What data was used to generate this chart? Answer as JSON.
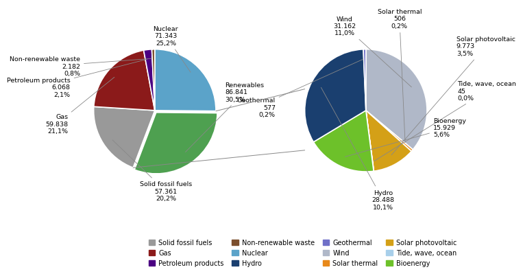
{
  "main_labels": [
    "Nuclear",
    "Renewables",
    "Solid fossil fuels",
    "Gas",
    "Petroleum products",
    "Non-renewable waste"
  ],
  "main_values": [
    71.343,
    86.841,
    57.361,
    59.838,
    6.068,
    2.182
  ],
  "main_display": [
    "Nuclear\n71.343\n25,2%",
    "Renewables\n86.841\n30,5%",
    "Solid fossil fuels\n57.361\n20,2%",
    "Gas\n59.838\n21,1%",
    "Petroleum products\n6.068\n2,1%",
    "Non-renewable waste\n2.182\n0,8%"
  ],
  "main_colors": [
    "#5BA3C9",
    "#4EA050",
    "#999999",
    "#8B1A1A",
    "#4B0082",
    "#7B4F2E"
  ],
  "main_explode": [
    0.0,
    0.04,
    0.0,
    0.0,
    0.0,
    0.0
  ],
  "sub_labels": [
    "Wind",
    "Solar thermal",
    "Solar photovoltaic",
    "Tide, wave, ocean",
    "Bioenergy",
    "Hydro",
    "Geothermal"
  ],
  "sub_values": [
    31162,
    506,
    9773,
    45,
    15929,
    28488,
    577
  ],
  "sub_display": [
    "Wind\n31.162\n11,0%",
    "Solar thermal\n506\n0,2%",
    "Solar photovoltaic\n9.773\n3,5%",
    "Tide, wave, ocean\n45\n0,0%",
    "Bioenergy\n15.929\n5,6%",
    "Hydro\n28.488\n10,1%",
    "Geothermal\n577\n0,2%"
  ],
  "sub_colors": [
    "#B0B8C8",
    "#E8891A",
    "#D4A017",
    "#A8CFEA",
    "#6DC12A",
    "#1A3F6F",
    "#7070C8"
  ],
  "legend_items": [
    {
      "label": "Solid fossil fuels",
      "color": "#999999"
    },
    {
      "label": "Gas",
      "color": "#8B1A1A"
    },
    {
      "label": "Petroleum products",
      "color": "#4B0082"
    },
    {
      "label": "Non-renewable waste",
      "color": "#7B4F2E"
    },
    {
      "label": "Nuclear",
      "color": "#5BA3C9"
    },
    {
      "label": "Hydro",
      "color": "#1A3F6F"
    },
    {
      "label": "Geothermal",
      "color": "#7070C8"
    },
    {
      "label": "Wind",
      "color": "#B0B8C8"
    },
    {
      "label": "Solar thermal",
      "color": "#E8891A"
    },
    {
      "label": "Solar photovoltaic",
      "color": "#D4A017"
    },
    {
      "label": "Tide, wave, ocean",
      "color": "#A8CFEA"
    },
    {
      "label": "Bioenergy",
      "color": "#6DC12A"
    }
  ],
  "main_label_coords": [
    [
      0.18,
      1.22,
      "center"
    ],
    [
      1.15,
      0.3,
      "left"
    ],
    [
      0.18,
      -1.32,
      "center"
    ],
    [
      -1.42,
      -0.22,
      "right"
    ],
    [
      -1.38,
      0.38,
      "right"
    ],
    [
      -1.22,
      0.72,
      "right"
    ]
  ],
  "sub_label_coords": [
    [
      -0.35,
      1.38,
      "center"
    ],
    [
      0.55,
      1.5,
      "center"
    ],
    [
      1.48,
      1.05,
      "left"
    ],
    [
      1.5,
      0.32,
      "left"
    ],
    [
      1.1,
      -0.28,
      "left"
    ],
    [
      0.28,
      -1.46,
      "center"
    ],
    [
      -1.48,
      0.05,
      "right"
    ]
  ]
}
